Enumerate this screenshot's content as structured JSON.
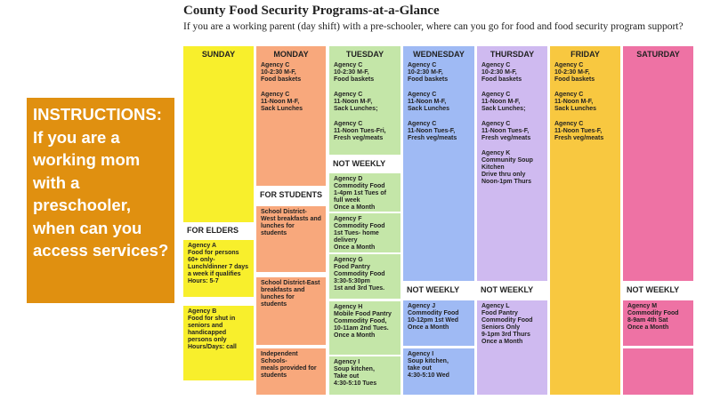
{
  "title": "County Food Security Programs-at-a-Glance",
  "subtitle": "If you are a working parent (day shift) with a pre-schooler, where can you go for food and food security program support?",
  "instructions": "INSTRUCTIONS: If you are a working mom with a preschooler, when can you access services?",
  "days": {
    "sunday": "SUNDAY",
    "monday": "MONDAY",
    "tuesday": "TUESDAY",
    "wednesday": "WEDNESDAY",
    "thursday": "THURSDAY",
    "friday": "FRIDAY",
    "saturday": "SATURDAY"
  },
  "section_headers": {
    "for_elders": "FOR ELDERS",
    "for_students": "FOR STUDENTS",
    "not_weekly_tue": "NOT WEEKLY",
    "not_weekly_wed": "NOT WEEKLY",
    "not_weekly_thu": "NOT WEEKLY",
    "not_weekly_sat": "NOT WEEKLY"
  },
  "cells": {
    "sun_elder_a": "Agency A\nFood for persons 60+ only- Lunch/dinner 7 days a week if qualifies\nHours: 5-7",
    "sun_elder_b": "Agency B\nFood for shut in seniors and handicapped persons only\nHours/Days: call",
    "mon_c1": "Agency C\n10-2:30 M-F,\nFood baskets",
    "mon_c2": "Agency C\n11-Noon M-F,\nSack Lunches",
    "mon_student_west": "School District-West breakfasts and lunches for students",
    "mon_student_east": "School District-East breakfasts and lunches for students",
    "mon_independent": "Independent Schools-\nmeals provided for students",
    "tue_c1": "Agency C\n10-2:30 M-F,\nFood baskets",
    "tue_c2": "Agency C\n11-Noon M-F,\nSack Lunches;",
    "tue_c3": "Agency C\n11-Noon Tues-Fri,\nFresh veg/meats",
    "tue_d": "Agency D\nCommodity Food\n1-4pm 1st Tues of full week\nOnce a Month",
    "tue_f": "Agency F\nCommodity Food\n1st Tues- home delivery\nOnce a Month",
    "tue_g": "Agency G\nFood Pantry\nCommodity Food\n3:30-5:30pm\n1st and 3rd Tues.",
    "tue_h": "Agency H\nMobile Food Pantry\nCommodity Food,\n10-11am 2nd Tues.\nOnce a Month",
    "tue_i": "Agency I\nSoup kitchen,\nTake out\n4:30-5:10 Tues",
    "wed_c1": "Agency C\n10-2:30 M-F,\nFood baskets",
    "wed_c2": "Agency C\n11-Noon M-F,\nSack Lunches",
    "wed_c3": "Agency C\n11-Noon Tues-F,\nFresh veg/meats",
    "wed_j": "Agency J\nCommodity Food\n10-12pm 1st Wed\nOnce a Month",
    "wed_i": "Agency I\nSoup kitchen,\ntake out\n4:30-5:10 Wed",
    "thu_c1": "Agency C\n10-2:30 M-F,\nFood baskets",
    "thu_c2": "Agency C\n11-Noon M-F,\nSack Lunches;",
    "thu_c3": "Agency C\n11-Noon Tues-F,\nFresh veg/meats",
    "thu_k": "Agency K\nCommunity Soup Kitchen\nDrive thru only\nNoon-1pm Thurs",
    "thu_l": "Agency L\nFood Pantry\nCommodity Food\nSeniors Only\n9-1pm 3rd Thurs\nOnce a Month",
    "fri_c1": "Agency C\n10-2:30 M-F,\nFood baskets",
    "fri_c2": "Agency C\n11-Noon M-F,\nSack Lunches",
    "fri_c3": "Agency C\n11-Noon Tues-F,\nFresh veg/meats",
    "sat_m": "Agency M\nCommodity Food\n8-9am 4th Sat\nOnce a Month"
  },
  "colors": {
    "sunday": "#f8ef2c",
    "monday": "#f8a87c",
    "tuesday": "#c4e6a8",
    "wednesday": "#9fbaf4",
    "thursday": "#cfbaf0",
    "friday": "#f8c840",
    "saturday": "#ee72a4",
    "instructions": "#e09010"
  }
}
